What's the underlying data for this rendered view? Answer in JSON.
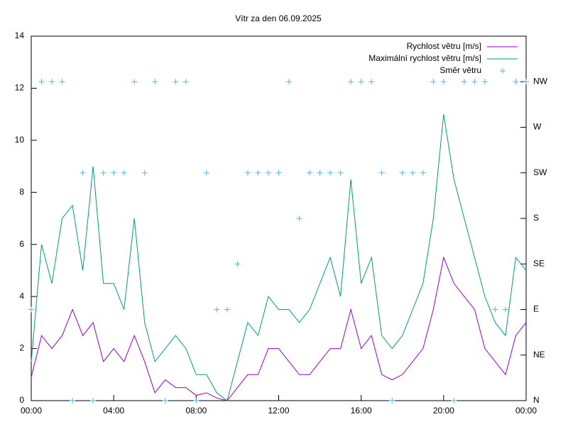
{
  "chart_data": {
    "type": "line",
    "title": "Vítr za den 06.09.2025",
    "x": [
      0,
      0.5,
      1,
      1.5,
      2,
      2.5,
      3,
      3.5,
      4,
      4.5,
      5,
      5.5,
      6,
      6.5,
      7,
      7.5,
      8,
      8.5,
      9,
      9.5,
      10,
      10.5,
      11,
      11.5,
      12,
      12.5,
      13,
      13.5,
      14,
      14.5,
      15,
      15.5,
      16,
      16.5,
      17,
      17.5,
      18,
      18.5,
      19,
      19.5,
      20,
      20.5,
      21,
      21.5,
      22,
      22.5,
      23,
      23.5,
      24
    ],
    "xlim": [
      0,
      24
    ],
    "xticks": [
      {
        "value": 0,
        "label": "00:00"
      },
      {
        "value": 4,
        "label": "04:00"
      },
      {
        "value": 8,
        "label": "08:00"
      },
      {
        "value": 12,
        "label": "12:00"
      },
      {
        "value": 16,
        "label": "16:00"
      },
      {
        "value": 20,
        "label": "20:00"
      },
      {
        "value": 24,
        "label": "00:00"
      }
    ],
    "ylim": [
      0,
      14
    ],
    "yticks": [
      0,
      2,
      4,
      6,
      8,
      10,
      12,
      14
    ],
    "y2lim": [
      0,
      360
    ],
    "y2ticks": [
      {
        "value": 0,
        "label": "N"
      },
      {
        "value": 45,
        "label": "NE"
      },
      {
        "value": 90,
        "label": "E"
      },
      {
        "value": 135,
        "label": "SE"
      },
      {
        "value": 180,
        "label": "S"
      },
      {
        "value": 225,
        "label": "SW"
      },
      {
        "value": 270,
        "label": "W"
      },
      {
        "value": 315,
        "label": "NW"
      }
    ],
    "legend": "upper right",
    "series": [
      {
        "name": "Rychlost větru [m/s]",
        "color": "#9400d3",
        "style": "line",
        "values": [
          0.9,
          2.5,
          2.0,
          2.5,
          3.5,
          2.5,
          3.0,
          1.5,
          2.0,
          1.5,
          2.5,
          1.5,
          0.3,
          0.8,
          0.5,
          0.5,
          0.2,
          0.3,
          0.1,
          0,
          0.5,
          1.0,
          1.0,
          2.0,
          2.0,
          1.5,
          1.0,
          1.0,
          1.5,
          2.0,
          2.0,
          3.5,
          2.0,
          2.5,
          1.0,
          0.8,
          1.0,
          1.5,
          2.0,
          3.5,
          5.5,
          4.5,
          4.0,
          3.5,
          2.0,
          1.5,
          1.0,
          2.5,
          3.0
        ]
      },
      {
        "name": "Maximální rychlost větru [m/s]",
        "color": "#009e73",
        "style": "line",
        "values": [
          1.5,
          6.0,
          4.5,
          7.0,
          7.5,
          5.0,
          9.0,
          4.5,
          4.5,
          3.5,
          7.0,
          3.0,
          1.5,
          2.0,
          2.5,
          2.0,
          1.0,
          1.0,
          0.3,
          0,
          1.5,
          3.0,
          2.5,
          4.0,
          3.5,
          3.5,
          3.0,
          3.5,
          4.5,
          5.5,
          4.0,
          8.5,
          4.5,
          5.5,
          2.5,
          2.0,
          2.5,
          3.5,
          4.5,
          7.0,
          11.0,
          8.5,
          7.0,
          5.5,
          4.0,
          3.0,
          2.5,
          5.5,
          5.0
        ]
      },
      {
        "name": "Směr větru",
        "color": "#56b4e9",
        "style": "points",
        "axis": "y2",
        "values": [
          90,
          315,
          315,
          315,
          0,
          225,
          0,
          225,
          225,
          225,
          315,
          225,
          315,
          0,
          315,
          315,
          0,
          225,
          90,
          90,
          135,
          225,
          225,
          225,
          225,
          315,
          180,
          225,
          225,
          225,
          225,
          315,
          315,
          315,
          225,
          0,
          225,
          225,
          225,
          315,
          315,
          0,
          315,
          315,
          315,
          90,
          90,
          315,
          315
        ]
      }
    ]
  }
}
